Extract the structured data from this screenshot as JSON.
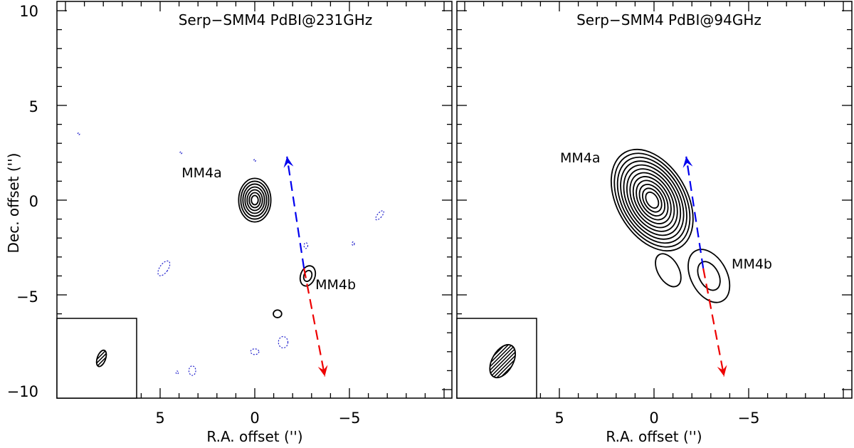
{
  "chart_data": {
    "type": "contour",
    "ylabel": "Dec. offset ('')",
    "ylim": [
      -10.5,
      10.5
    ],
    "yticks": [
      10,
      5,
      0,
      -5,
      -10
    ],
    "tick_labels_y": [
      "10",
      "5",
      "0",
      "−5",
      "−10"
    ],
    "panels": [
      {
        "title": "Serp−SMM4 PdBI@231GHz",
        "xlabel": "R.A. offset ('')",
        "xlim": [
          10,
          -10
        ],
        "xticks": [
          5,
          0,
          -5
        ],
        "tick_labels_x": [
          "5",
          "0",
          "−5"
        ],
        "sources": [
          {
            "name": "MM4a",
            "ra": 0.0,
            "dec": 0.0,
            "label_ra": 2.8,
            "label_dec": 1.2
          },
          {
            "name": "MM4b",
            "ra": -2.8,
            "dec": -4.0,
            "label_ra": -3.2,
            "label_dec": -4.7
          }
        ],
        "positive_contours": [
          {
            "ra": 0.0,
            "dec": 0.0,
            "a": 0.85,
            "b": 1.15,
            "pa": 0,
            "levels": 7
          },
          {
            "ra": -2.8,
            "dec": -4.0,
            "a": 0.38,
            "b": 0.55,
            "pa": 20,
            "levels": 2
          },
          {
            "ra": -1.2,
            "dec": -6.0,
            "a": 0.22,
            "b": 0.2,
            "pa": 0,
            "levels": 1
          }
        ],
        "negative_contours": [
          {
            "ra": 4.8,
            "dec": -3.6,
            "a": 0.22,
            "b": 0.45,
            "pa": 35
          },
          {
            "ra": -2.7,
            "dec": -2.4,
            "a": 0.1,
            "b": 0.15,
            "pa": 0
          },
          {
            "ra": -6.6,
            "dec": -0.8,
            "a": 0.12,
            "b": 0.3,
            "pa": 40
          },
          {
            "ra": -5.2,
            "dec": -2.3,
            "a": 0.06,
            "b": 0.1,
            "pa": 0
          },
          {
            "ra": -1.5,
            "dec": -7.5,
            "a": 0.25,
            "b": 0.3,
            "pa": 0
          },
          {
            "ra": 0.0,
            "dec": -8.0,
            "a": 0.22,
            "b": 0.15,
            "pa": 0
          },
          {
            "ra": 3.3,
            "dec": -9.0,
            "a": 0.18,
            "b": 0.25,
            "pa": 0
          },
          {
            "ra": 4.1,
            "dec": -9.1,
            "a": 0.06,
            "b": 0.08,
            "pa": 0
          },
          {
            "ra": 9.3,
            "dec": 3.5,
            "a": 0.05,
            "b": 0.05,
            "pa": 0
          },
          {
            "ra": 3.9,
            "dec": 2.5,
            "a": 0.05,
            "b": 0.05,
            "pa": 0
          },
          {
            "ra": 0.0,
            "dec": 2.1,
            "a": 0.05,
            "b": 0.05,
            "pa": 0
          }
        ],
        "beam": {
          "ra": 8.1,
          "dec": -8.35,
          "a": 0.22,
          "b": 0.45,
          "pa": 20
        },
        "outflow": {
          "origin_ra": -2.6,
          "origin_dec": -3.6,
          "blue_tip_ra": -1.7,
          "blue_tip_dec": 2.3,
          "red_tip_ra": -3.7,
          "red_tip_dec": -9.3
        }
      },
      {
        "title": "Serp−SMM4 PdBI@94GHz",
        "xlabel": "R.A. offset ('')",
        "xlim": [
          10,
          -10
        ],
        "xticks": [
          5,
          0,
          -5
        ],
        "tick_labels_x": [
          "5",
          "0",
          "−5"
        ],
        "sources": [
          {
            "name": "MM4a",
            "ra": 0.0,
            "dec": 0.0,
            "label_ra": 3.9,
            "label_dec": 2.0
          },
          {
            "name": "MM4b",
            "ra": -2.9,
            "dec": -4.0,
            "label_ra": -4.1,
            "label_dec": -3.6
          }
        ],
        "positive_contours": [
          {
            "ra": 0.1,
            "dec": 0.0,
            "a": 1.85,
            "b": 2.9,
            "pa": -30,
            "levels": 12
          },
          {
            "ra": -0.75,
            "dec": -3.7,
            "a": 0.55,
            "b": 0.95,
            "pa": -30,
            "levels": 1
          },
          {
            "ra": -2.9,
            "dec": -4.0,
            "a": 0.95,
            "b": 1.5,
            "pa": -28,
            "levels": 2
          }
        ],
        "negative_contours": [],
        "beam": {
          "ra": 8.0,
          "dec": -8.5,
          "a": 0.55,
          "b": 0.95,
          "pa": 30
        },
        "outflow": {
          "origin_ra": -2.6,
          "origin_dec": -3.6,
          "blue_tip_ra": -1.7,
          "blue_tip_dec": 2.3,
          "red_tip_ra": -3.7,
          "red_tip_dec": -9.3
        }
      }
    ],
    "colors": {
      "contour": "#000000",
      "negative": "#2222cc",
      "blue_lobe": "#0000ee",
      "red_lobe": "#ee0000"
    }
  }
}
